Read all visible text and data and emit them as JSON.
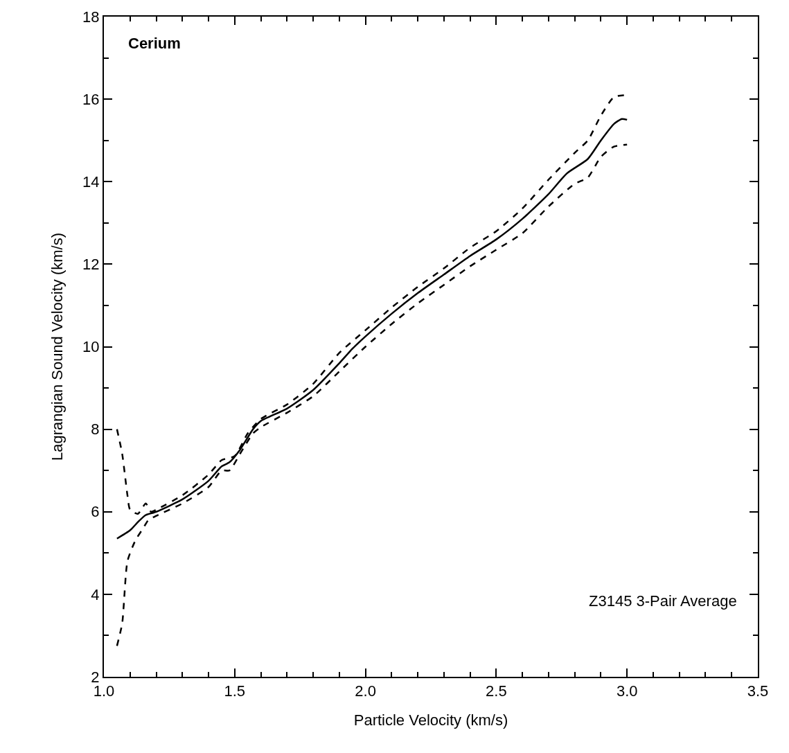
{
  "chart_data": {
    "type": "line",
    "xlabel": "Particle Velocity (km/s)",
    "ylabel": "Lagrangian Sound Velocity (km/s)",
    "annotations": [
      "Cerium",
      "Z3145 3-Pair Average"
    ],
    "xlim": [
      1.0,
      3.5
    ],
    "ylim": [
      2,
      18
    ],
    "xticks": [
      {
        "value": 1.0,
        "label": "1.0"
      },
      {
        "value": 1.1,
        "label": null
      },
      {
        "value": 1.2,
        "label": null
      },
      {
        "value": 1.3,
        "label": null
      },
      {
        "value": 1.4,
        "label": null
      },
      1.5,
      {
        "value": 1.6,
        "label": null
      },
      {
        "value": 1.7,
        "label": null
      },
      {
        "value": 1.8,
        "label": null
      },
      {
        "value": 1.9,
        "label": null
      },
      {
        "value": 2.0,
        "label": "2.0"
      },
      {
        "value": 2.1,
        "label": null
      },
      {
        "value": 2.2,
        "label": null
      },
      {
        "value": 2.3,
        "label": null
      },
      {
        "value": 2.4,
        "label": null
      },
      2.5,
      {
        "value": 2.6,
        "label": null
      },
      {
        "value": 2.7,
        "label": null
      },
      {
        "value": 2.8,
        "label": null
      },
      {
        "value": 2.9,
        "label": null
      },
      {
        "value": 3.0,
        "label": "3.0"
      },
      {
        "value": 3.1,
        "label": null
      },
      {
        "value": 3.2,
        "label": null
      },
      {
        "value": 3.3,
        "label": null
      },
      {
        "value": 3.4,
        "label": null
      },
      3.5
    ],
    "yticks": [
      2,
      {
        "value": 3,
        "label": null
      },
      4,
      {
        "value": 5,
        "label": null
      },
      6,
      {
        "value": 7,
        "label": null
      },
      8,
      {
        "value": 9,
        "label": null
      },
      10,
      {
        "value": 11,
        "label": null
      },
      12,
      {
        "value": 13,
        "label": null
      },
      14,
      {
        "value": 15,
        "label": null
      },
      16,
      {
        "value": 17,
        "label": null
      },
      18
    ],
    "grid": false,
    "series": [
      {
        "color": "#000000",
        "line_style": "solid",
        "x": [
          1.05,
          1.1,
          1.13,
          1.16,
          1.2,
          1.3,
          1.4,
          1.45,
          1.48,
          1.52,
          1.57,
          1.6,
          1.7,
          1.8,
          1.9,
          1.95,
          2.0,
          2.1,
          2.2,
          2.3,
          2.4,
          2.5,
          2.6,
          2.7,
          2.77,
          2.85,
          2.9,
          2.95,
          2.98,
          3.0
        ],
        "values": [
          5.35,
          5.55,
          5.75,
          5.92,
          6.0,
          6.3,
          6.75,
          7.1,
          7.2,
          7.5,
          8.0,
          8.2,
          8.5,
          8.95,
          9.6,
          9.95,
          10.25,
          10.8,
          11.3,
          11.75,
          12.2,
          12.6,
          13.1,
          13.7,
          14.2,
          14.55,
          15.0,
          15.4,
          15.52,
          15.5
        ]
      },
      {
        "color": "#000000",
        "line_style": "dashed",
        "x": [
          1.05,
          1.07,
          1.09,
          1.1,
          1.13,
          1.16,
          1.18,
          1.2,
          1.3,
          1.4,
          1.45,
          1.5,
          1.55,
          1.6,
          1.7,
          1.8,
          1.9,
          2.0,
          2.1,
          2.2,
          2.3,
          2.4,
          2.5,
          2.6,
          2.7,
          2.8,
          2.85,
          2.9,
          2.95,
          3.0
        ],
        "values": [
          8.0,
          7.4,
          6.4,
          6.05,
          5.95,
          6.2,
          6.0,
          6.05,
          6.4,
          6.9,
          7.25,
          7.35,
          7.9,
          8.25,
          8.6,
          9.1,
          9.85,
          10.4,
          10.95,
          11.45,
          11.9,
          12.4,
          12.8,
          13.35,
          14.05,
          14.7,
          15.0,
          15.6,
          16.05,
          16.1
        ]
      },
      {
        "color": "#000000",
        "line_style": "dashed",
        "x": [
          1.05,
          1.07,
          1.09,
          1.12,
          1.15,
          1.17,
          1.2,
          1.3,
          1.4,
          1.45,
          1.48,
          1.52,
          1.57,
          1.6,
          1.7,
          1.8,
          1.9,
          2.0,
          2.1,
          2.2,
          2.3,
          2.4,
          2.5,
          2.6,
          2.7,
          2.8,
          2.85,
          2.9,
          2.95,
          3.0
        ],
        "values": [
          2.75,
          3.3,
          4.8,
          5.3,
          5.6,
          5.8,
          5.9,
          6.2,
          6.6,
          7.0,
          7.0,
          7.4,
          7.9,
          8.05,
          8.4,
          8.8,
          9.4,
          10.0,
          10.55,
          11.05,
          11.5,
          11.95,
          12.35,
          12.75,
          13.4,
          13.95,
          14.1,
          14.6,
          14.85,
          14.9
        ]
      }
    ]
  }
}
